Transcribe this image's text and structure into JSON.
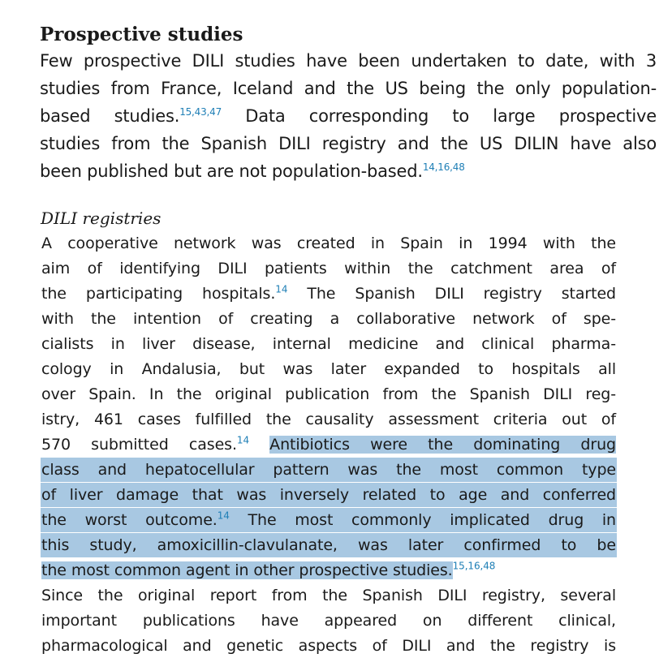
{
  "section": {
    "heading": "Prospective studies",
    "paragraph_lines": [
      {
        "before": "Few prospective DILI studies have been undertaken to date, with 3",
        "ref": "",
        "after": ""
      },
      {
        "before": "studies from France, Iceland and the US being the only population-",
        "ref": "",
        "after": ""
      },
      {
        "before": "based studies.",
        "ref": "15,43,47",
        "after": " Data corresponding to large prospective"
      },
      {
        "before": "studies from the Spanish DILI registry and the US DILIN have also",
        "ref": "",
        "after": ""
      },
      {
        "before": "been published but are not population-based.",
        "ref": "14,16,48",
        "after": ""
      }
    ]
  },
  "subsection": {
    "heading": "DILI registries",
    "lines": [
      {
        "plain1": "A cooperative network was created in Spain in 1994 with the"
      },
      {
        "plain1": "aim of identifying DILI patients within the catchment area of"
      },
      {
        "plain1": "the participating hospitals.",
        "ref1": "14",
        "plain2": " The Spanish DILI registry started"
      },
      {
        "plain1": "with the intention of creating a collaborative network of spe-"
      },
      {
        "plain1": "cialists in liver disease, internal medicine and clinical pharma-"
      },
      {
        "plain1": "cology in Andalusia, but was later expanded to hospitals all"
      },
      {
        "plain1": "over Spain. In the original publication from the Spanish DILI reg-"
      },
      {
        "plain1": "istry, 461 cases fulfilled the causality assessment criteria out of"
      },
      {
        "plain1": "570 submitted cases.",
        "ref1": "14",
        "hl1": "Antibiotics were the dominating drug"
      },
      {
        "hl1": "class and hepatocellular pattern was the most common type"
      },
      {
        "hl1": "of liver damage that was inversely related to age and conferred"
      },
      {
        "hl1": "the worst outcome.",
        "ref2": "14",
        "hl2": "The most commonly implicated drug in"
      },
      {
        "hl1": "this study, amoxicillin-clavulanate, was later confirmed to be"
      },
      {
        "hl1": "the most common agent in other prospective studies.",
        "ref3": "15,16,48"
      },
      {
        "plain1": "Since the original report from the Spanish DILI registry, several"
      },
      {
        "plain1": "important publications have appeared on different clinical,"
      },
      {
        "plain1": "pharmacological and genetic aspects of DILI and the registry is"
      }
    ]
  },
  "colors": {
    "highlight": "#a8c8e2",
    "reference": "#1f7fb6",
    "text": "#1a1a1a"
  }
}
